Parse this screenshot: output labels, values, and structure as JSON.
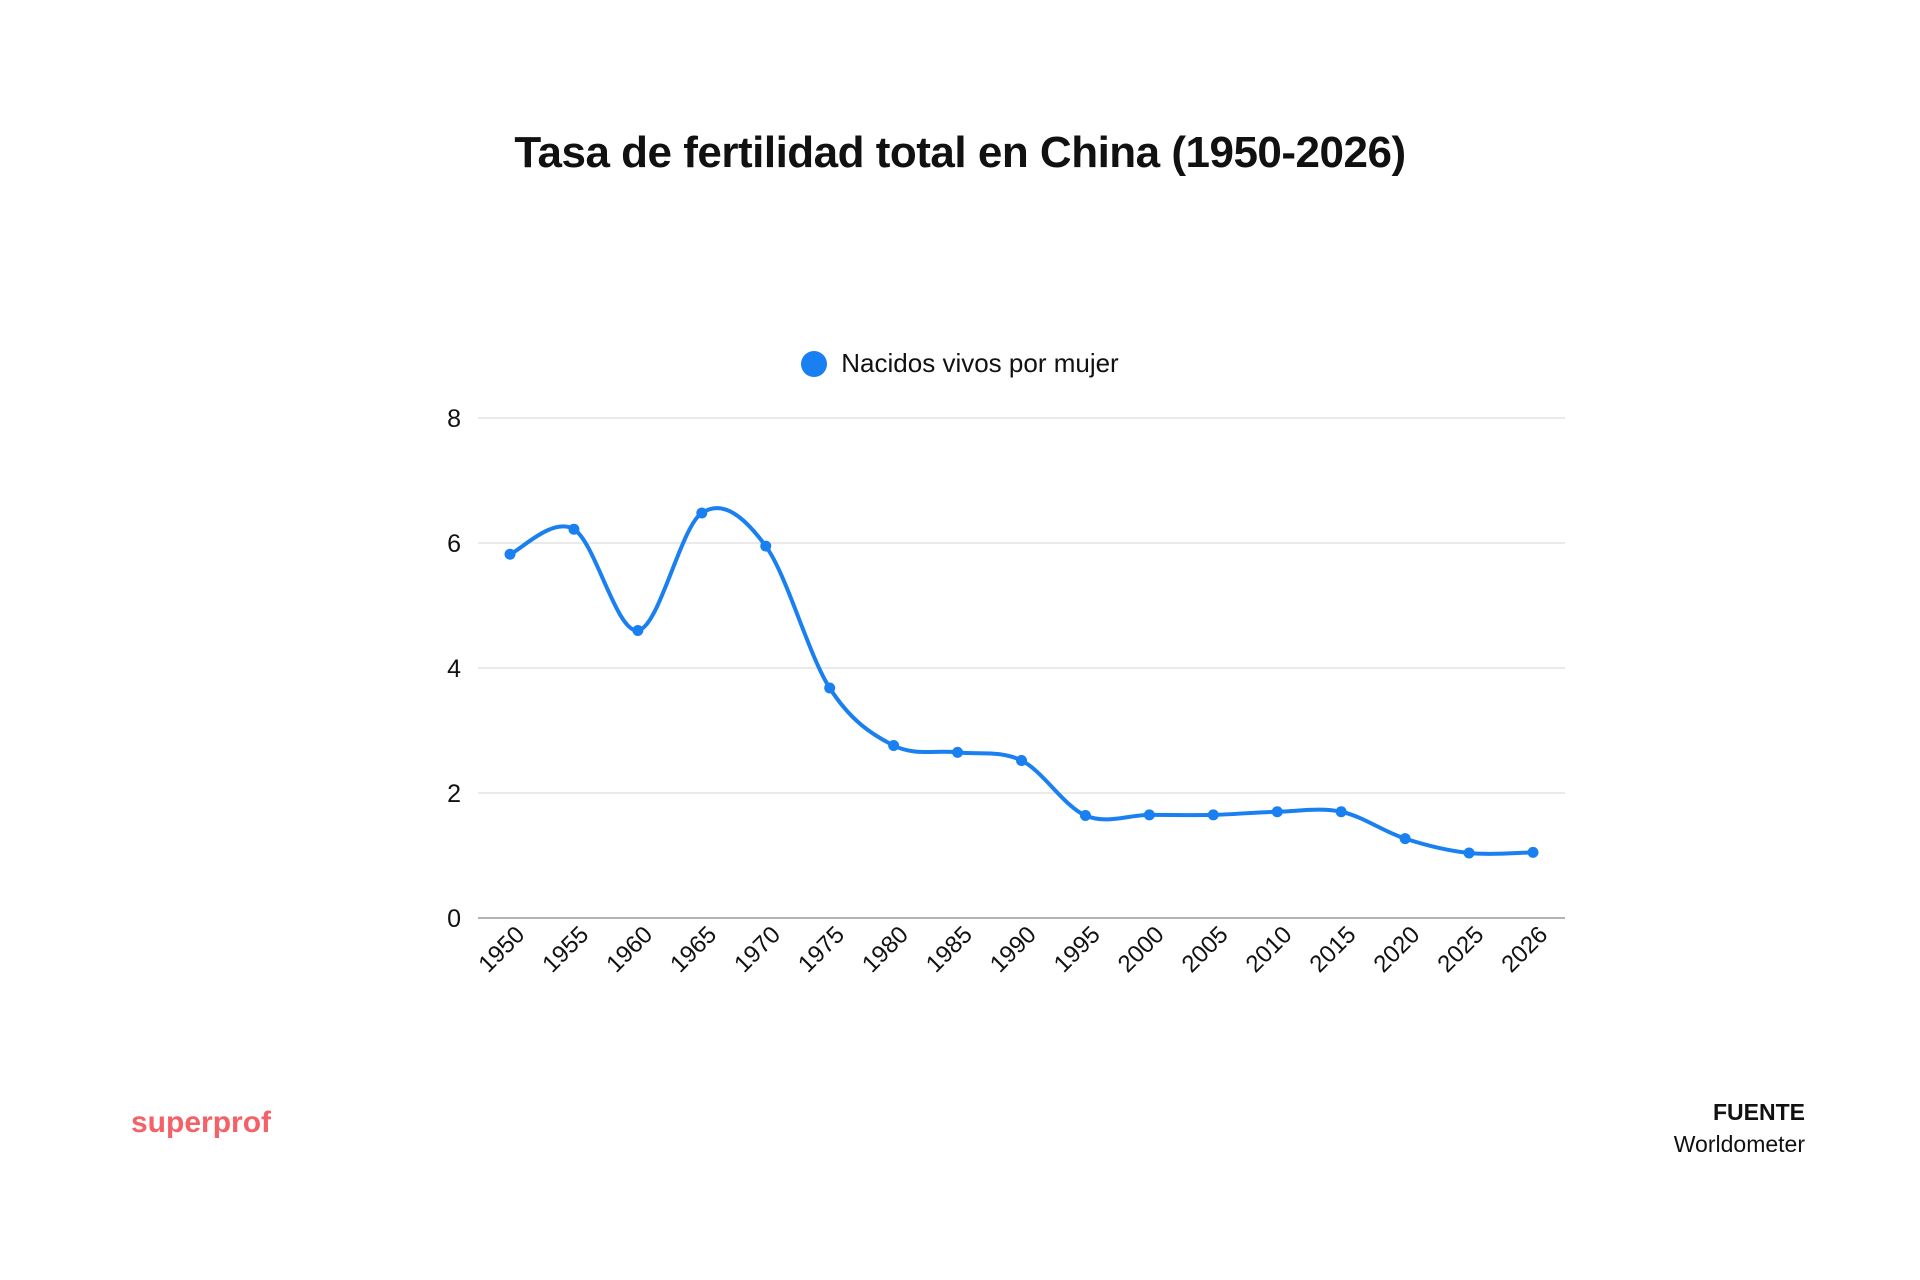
{
  "chart_data": {
    "type": "line",
    "title": "Tasa de fertilidad total en China (1950-2026)",
    "xlabel": "",
    "ylabel": "",
    "categories": [
      "1950",
      "1955",
      "1960",
      "1965",
      "1970",
      "1975",
      "1980",
      "1985",
      "1990",
      "1995",
      "2000",
      "2005",
      "2010",
      "2015",
      "2020",
      "2025",
      "2026"
    ],
    "series": [
      {
        "name": "Nacidos vivos por mujer",
        "values": [
          5.82,
          6.22,
          4.6,
          6.48,
          5.95,
          3.68,
          2.76,
          2.65,
          2.52,
          1.64,
          1.65,
          1.65,
          1.7,
          1.7,
          1.27,
          1.04,
          1.05
        ],
        "color": "#1a7ff0"
      }
    ],
    "ylim": [
      0,
      8
    ],
    "yticks": [
      0,
      2,
      4,
      6,
      8
    ],
    "grid": true,
    "legend": "top-center",
    "smooth": true,
    "markers": true
  },
  "footer": {
    "brand": "superprof",
    "brand_color": "#f46166",
    "source_label": "FUENTE",
    "source_value": "Worldometer"
  },
  "colors": {
    "grid": "#dedede",
    "axis": "#9a9a9a",
    "text": "#111111"
  }
}
